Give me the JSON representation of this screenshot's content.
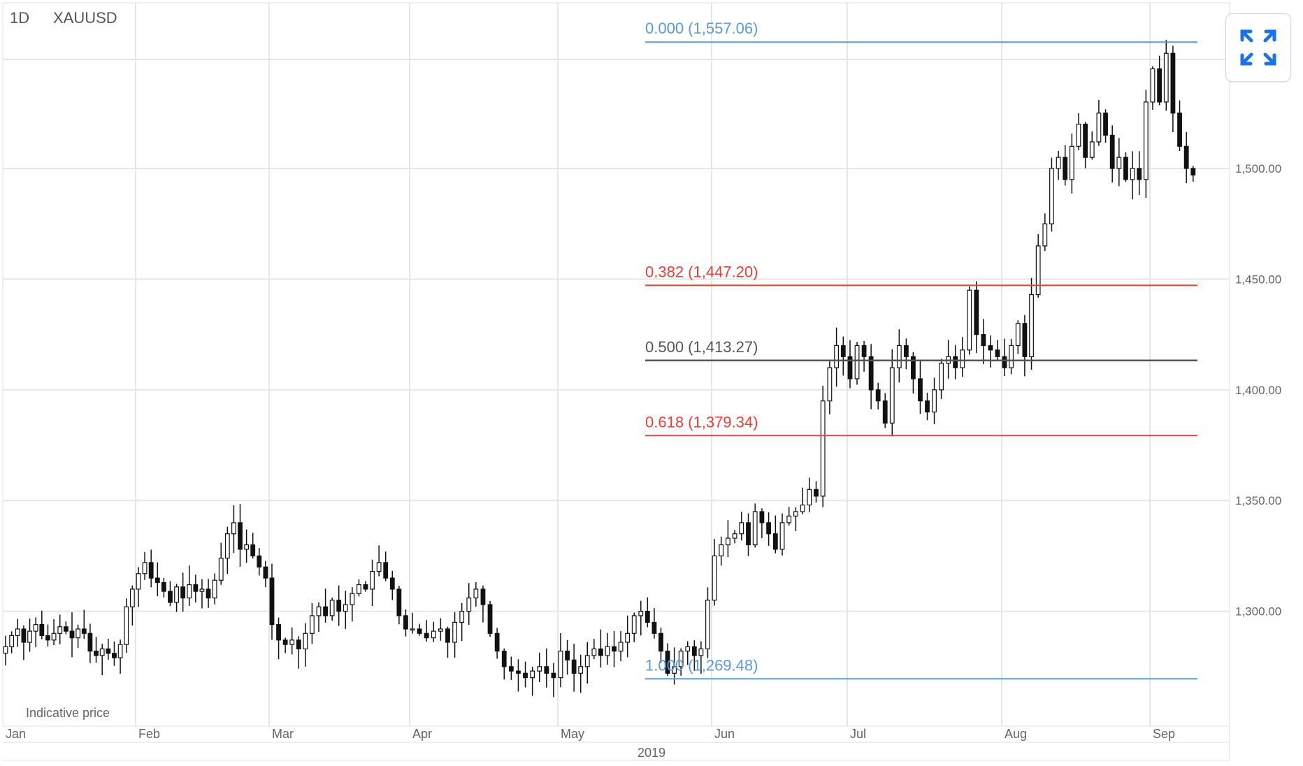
{
  "header": {
    "interval": "1D",
    "symbol": "XAUUSD"
  },
  "footer": {
    "note": "Indicative price",
    "year": "2019"
  },
  "colors": {
    "fib_blue": "#5b9bd5",
    "fib_red": "#e8413c",
    "fib_gray": "#555555",
    "grid": "#e6e6e6"
  },
  "expand_button": {
    "icon": "expand-icon"
  },
  "chart_data": {
    "type": "candlestick",
    "title": "1D XAUUSD",
    "ylim": [
      1248,
      1575
    ],
    "yticks": [
      {
        "v": 1300,
        "label": "1,300.00"
      },
      {
        "v": 1350,
        "label": "1,350.00"
      },
      {
        "v": 1400,
        "label": "1,400.00"
      },
      {
        "v": 1450,
        "label": "1,450.00"
      },
      {
        "v": 1500,
        "label": "1,500.00"
      }
    ],
    "months": [
      {
        "label": "Jan",
        "close": [
          1284,
          1289,
          1292,
          1286,
          1291,
          1294,
          1289,
          1287,
          1290,
          1293,
          1291,
          1288,
          1292,
          1290,
          1282,
          1280,
          1283,
          1281,
          1279,
          1285,
          1302,
          1310
        ]
      },
      {
        "label": "Feb",
        "close": [
          1317,
          1322,
          1315,
          1313,
          1309,
          1304,
          1311,
          1306,
          1312,
          1309,
          1310,
          1306,
          1314,
          1324,
          1335,
          1340,
          1328,
          1330,
          1325,
          1320,
          1315
        ]
      },
      {
        "label": "Mar",
        "close": [
          1294,
          1287,
          1285,
          1287,
          1283,
          1290,
          1298,
          1302,
          1298,
          1305,
          1300,
          1303,
          1308,
          1312,
          1310,
          1318,
          1322,
          1315,
          1310,
          1298,
          1292
        ]
      },
      {
        "label": "Apr",
        "close": [
          1292,
          1290,
          1288,
          1291,
          1292,
          1286,
          1295,
          1300,
          1306,
          1310,
          1303,
          1290,
          1282,
          1275,
          1273,
          1272,
          1270,
          1273,
          1275,
          1272,
          1270
        ]
      },
      {
        "label": "May",
        "close": [
          1282,
          1278,
          1272,
          1275,
          1280,
          1283,
          1280,
          1284,
          1282,
          1286,
          1290,
          1298,
          1300,
          1295,
          1290,
          1282,
          1272,
          1275,
          1282,
          1284,
          1280,
          1283,
          1305
        ]
      },
      {
        "label": "Jun",
        "close": [
          1325,
          1330,
          1333,
          1335,
          1340,
          1330,
          1345,
          1340,
          1335,
          1328,
          1340,
          1343,
          1345,
          1348,
          1355,
          1352,
          1395,
          1410,
          1420,
          1415
        ]
      },
      {
        "label": "Jul",
        "close": [
          1405,
          1420,
          1415,
          1400,
          1395,
          1385,
          1410,
          1420,
          1415,
          1405,
          1395,
          1390,
          1400,
          1412,
          1415,
          1410,
          1418,
          1445,
          1425,
          1420,
          1418,
          1415
        ]
      },
      {
        "label": "Aug",
        "close": [
          1410,
          1420,
          1430,
          1415,
          1443,
          1465,
          1475,
          1500,
          1505,
          1495,
          1510,
          1520,
          1505,
          1512,
          1525,
          1515,
          1500,
          1505,
          1495,
          1500,
          1495,
          1530
        ]
      },
      {
        "label": "Sep",
        "close": [
          1545,
          1530,
          1552,
          1525,
          1510,
          1500,
          1497
        ]
      }
    ],
    "wick": 5,
    "fibonacci": [
      {
        "level": "0.000",
        "price": 1557.06,
        "label": "0.000 (1,557.06)",
        "color": "#5b9bd5"
      },
      {
        "level": "0.382",
        "price": 1447.2,
        "label": "0.382 (1,447.20)",
        "color": "#e8413c"
      },
      {
        "level": "0.500",
        "price": 1413.27,
        "label": "0.500 (1,413.27)",
        "color": "#555555"
      },
      {
        "level": "0.618",
        "price": 1379.34,
        "label": "0.618 (1,379.34)",
        "color": "#e8413c"
      },
      {
        "level": "1.000",
        "price": 1269.48,
        "label": "1.000 (1,269.48)",
        "color": "#5b9bd5"
      }
    ]
  }
}
